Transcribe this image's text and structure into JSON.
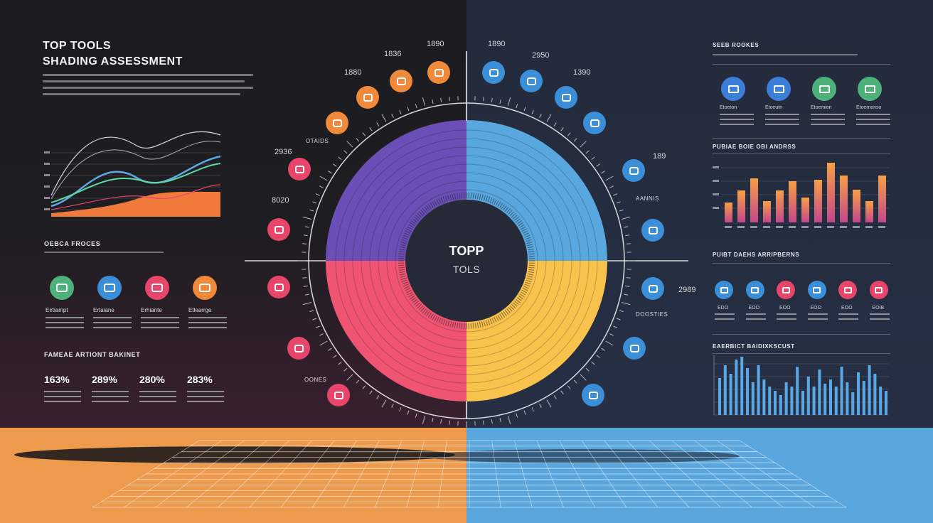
{
  "header": {
    "title_line1": "TOP TOOLS",
    "title_line2": "SHADING ASSESSMENT"
  },
  "center": {
    "title": "TOPP",
    "subtitle": "TOLS"
  },
  "left": {
    "section1_title": "OEBCA FROCES",
    "icons": [
      {
        "color": "#4cb27a",
        "icon": "image-icon",
        "label": "Eirtiampt"
      },
      {
        "color": "#3b8fd9",
        "icon": "gallery-icon",
        "label": "Ertaiane"
      },
      {
        "color": "#e8456a",
        "icon": "book-icon",
        "label": "Erhiante"
      },
      {
        "color": "#f08a3a",
        "icon": "grid-icon",
        "label": "Etlearrge"
      }
    ],
    "section2_title": "FAMEAE ARTIONT BAKINET",
    "stats": [
      "163%",
      "289%",
      "280%",
      "283%"
    ]
  },
  "ring_labels": [
    "1890",
    "1836",
    "1880",
    "2936",
    "8020",
    "1890",
    "2950",
    "1390",
    "189",
    "2989"
  ],
  "ring_small_labels": [
    "OTAIDS",
    "AANNIS",
    "DOOSTIES",
    "OONES"
  ],
  "right": {
    "panel1_title": "SEEB ROOKES",
    "panel1_icons": [
      {
        "color": "#3b7fd9",
        "icon": "calendar-icon",
        "label": "Etoeton"
      },
      {
        "color": "#3b7fd9",
        "icon": "card-icon",
        "label": "Etoeutn"
      },
      {
        "color": "#4cb27a",
        "icon": "browser-icon",
        "label": "Etoemion"
      },
      {
        "color": "#4cb27a",
        "icon": "chart-icon",
        "label": "Etoemonso"
      }
    ],
    "panel2_title": "PUBIAE BOIE OBI ANDRSS",
    "panel3_title": "PUIBT DAEHS ARRIPBERNS",
    "panel3_icons": [
      {
        "color": "#3b8fd9",
        "icon": "people-icon",
        "label": "EDO"
      },
      {
        "color": "#3b8fd9",
        "icon": "users-icon",
        "label": "EOO"
      },
      {
        "color": "#e8456a",
        "icon": "group-icon",
        "label": "EOO"
      },
      {
        "color": "#3b8fd9",
        "icon": "team-icon",
        "label": "EOO"
      },
      {
        "color": "#e8456a",
        "icon": "network-icon",
        "label": "EOO"
      },
      {
        "color": "#e8456a",
        "icon": "flag-icon",
        "label": "EOIB"
      }
    ],
    "panel4_title": "EAERBICT BAIDIXKSCUST"
  },
  "colors": {
    "purple": "#6b4fb6",
    "blue": "#58a7de",
    "pink": "#ef5572",
    "yellow": "#f9c24c",
    "orange": "#ee9a4d"
  }
}
